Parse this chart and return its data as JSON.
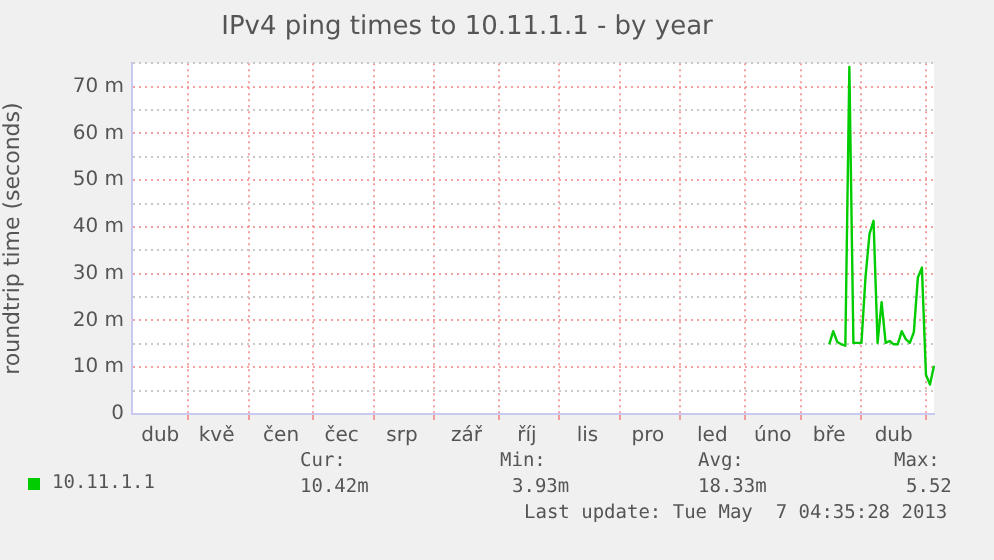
{
  "chart_data": {
    "type": "line",
    "title": "IPv4 ping times to 10.11.1.1 - by year",
    "ylabel": "roundtrip time (seconds)",
    "categories": [
      null,
      null,
      null,
      null,
      null,
      null,
      null,
      "dub",
      null,
      null,
      null,
      null,
      null,
      null,
      null,
      null,
      null,
      null,
      null,
      null,
      null,
      "kvě",
      null,
      null,
      null,
      null,
      null,
      null,
      null,
      null,
      null,
      null,
      null,
      null,
      null,
      null,
      null,
      "čen",
      null,
      null,
      null,
      null,
      null,
      null,
      null,
      null,
      null,
      null,
      null,
      null,
      null,
      null,
      "čec",
      null,
      null,
      null,
      null,
      null,
      null,
      null,
      null,
      null,
      null,
      null,
      null,
      null,
      null,
      "srp",
      null,
      null,
      null,
      null,
      null,
      null,
      null,
      null,
      null,
      null,
      null,
      null,
      null,
      null,
      null,
      "zář",
      null,
      null,
      null,
      null,
      null,
      null,
      null,
      null,
      null,
      null,
      null,
      null,
      null,
      null,
      "říj",
      null,
      null,
      null,
      null,
      null,
      null,
      null,
      null,
      null,
      null,
      null,
      null,
      null,
      null,
      "lis",
      null,
      null,
      null,
      null,
      null,
      null,
      null,
      null,
      null,
      null,
      null,
      null,
      null,
      null,
      "pro",
      null,
      null,
      null,
      null,
      null,
      null,
      null,
      null,
      null,
      null,
      null,
      null,
      null,
      null,
      null,
      "led",
      null,
      null,
      null,
      null,
      null,
      null,
      null,
      null,
      null,
      null,
      null,
      null,
      null,
      null,
      "úno",
      null,
      null,
      null,
      null,
      null,
      null,
      null,
      null,
      null,
      null,
      null,
      null,
      null,
      "bře",
      null,
      null,
      null,
      null,
      null,
      null,
      null,
      null,
      null,
      null,
      null,
      null,
      null,
      null,
      null,
      "dub",
      null,
      null,
      null,
      null,
      null,
      null,
      null,
      null,
      null,
      null
    ],
    "series": [
      {
        "name": "10.11.1.1",
        "color": "#00cc00",
        "values": [
          null,
          null,
          null,
          null,
          null,
          null,
          null,
          null,
          null,
          null,
          null,
          null,
          null,
          null,
          null,
          null,
          null,
          null,
          null,
          null,
          null,
          null,
          null,
          null,
          null,
          null,
          null,
          null,
          null,
          null,
          null,
          null,
          null,
          null,
          null,
          null,
          null,
          null,
          null,
          null,
          null,
          null,
          null,
          null,
          null,
          null,
          null,
          null,
          null,
          null,
          null,
          null,
          null,
          null,
          null,
          null,
          null,
          null,
          null,
          null,
          null,
          null,
          null,
          null,
          null,
          null,
          null,
          null,
          null,
          null,
          null,
          null,
          null,
          null,
          null,
          null,
          null,
          null,
          null,
          null,
          null,
          null,
          null,
          null,
          null,
          null,
          null,
          null,
          null,
          null,
          null,
          null,
          null,
          null,
          null,
          null,
          null,
          null,
          null,
          null,
          null,
          null,
          null,
          null,
          null,
          null,
          null,
          null,
          null,
          null,
          null,
          null,
          null,
          null,
          null,
          null,
          null,
          null,
          null,
          null,
          null,
          null,
          null,
          null,
          null,
          null,
          null,
          null,
          null,
          null,
          null,
          null,
          null,
          null,
          null,
          null,
          null,
          null,
          null,
          null,
          null,
          null,
          null,
          null,
          null,
          null,
          null,
          null,
          null,
          null,
          null,
          null,
          null,
          null,
          null,
          null,
          null,
          null,
          null,
          null,
          null,
          null,
          null,
          null,
          null,
          null,
          null,
          null,
          null,
          null,
          null,
          null,
          null,
          14.9,
          17.7,
          15.4,
          14.9,
          14.6,
          74.2,
          15.2,
          15.2,
          15.2,
          29.2,
          38.5,
          41.3,
          15.2,
          23.9,
          15.2,
          15.6,
          14.9,
          14.9,
          17.7,
          16,
          15.2,
          17.5,
          29.2,
          31.3,
          8.4,
          6.3,
          10.3
        ]
      }
    ],
    "ylim": [
      0,
      75
    ],
    "yticks": [
      0,
      {
        "value": 5,
        "label": null
      },
      {
        "value": 10,
        "label": "10 m"
      },
      {
        "value": 15,
        "label": null
      },
      {
        "value": 20,
        "label": "20 m"
      },
      {
        "value": 25,
        "label": null
      },
      {
        "value": 30,
        "label": "30 m"
      },
      {
        "value": 35,
        "label": null
      },
      {
        "value": 40,
        "label": "40 m"
      },
      {
        "value": 45,
        "label": null
      },
      {
        "value": 50,
        "label": "50 m"
      },
      {
        "value": 55,
        "label": null
      },
      {
        "value": 60,
        "label": "60 m"
      },
      {
        "value": 65,
        "label": null
      },
      {
        "value": 70,
        "label": "70 m"
      },
      {
        "value": 75,
        "label": null
      }
    ],
    "grid": true,
    "legend": "bottom left",
    "marker": "none",
    "line_style": "solid",
    "annotations": [
      "Cur:",
      "10.42m",
      "Min:",
      "3.93m",
      "Avg:",
      "18.33m",
      "Max:",
      "5.52",
      "Last update: Tue May  7 04:35:28 2013"
    ]
  }
}
